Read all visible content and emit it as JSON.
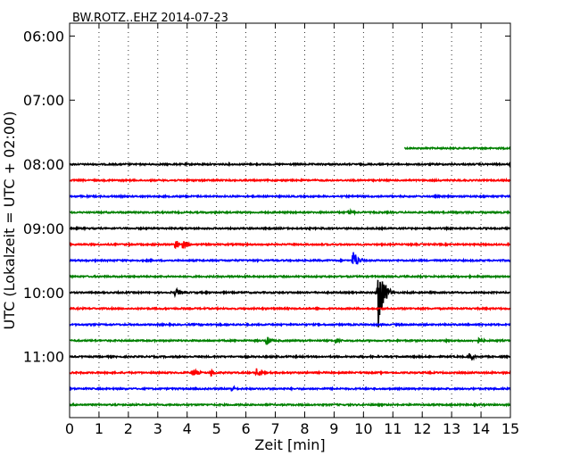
{
  "chart_data": {
    "type": "line",
    "title": "BW.ROTZ..EHZ 2014-07-23",
    "xlabel": "Zeit  [min]",
    "ylabel": "UTC (Lokalzeit = UTC + 02:00)",
    "xlim": [
      0,
      15
    ],
    "x_ticks": [
      "0",
      "1",
      "2",
      "3",
      "4",
      "5",
      "6",
      "7",
      "8",
      "9",
      "10",
      "11",
      "12",
      "13",
      "14",
      "15"
    ],
    "y_ticks": [
      "06:00",
      "07:00",
      "08:00",
      "09:00",
      "10:00",
      "11:00"
    ],
    "y_tick_hours": [
      6,
      7,
      8,
      9,
      10,
      11
    ],
    "ylim_hours": [
      5.8,
      11.95
    ],
    "grid_x": "dotted",
    "row_interval_min": 15,
    "color_cycle": [
      "#000000",
      "#ff0000",
      "#0000ff",
      "#008000"
    ],
    "series": [
      {
        "start": "07:45",
        "x_range": [
          11.4,
          15
        ],
        "color": "#008000",
        "events": []
      },
      {
        "start": "08:00",
        "x_range": [
          0,
          15
        ],
        "color": "#000000",
        "events": [
          {
            "x": 15.0,
            "amp": 0.2
          }
        ]
      },
      {
        "start": "08:15",
        "x_range": [
          0,
          15
        ],
        "color": "#ff0000",
        "events": []
      },
      {
        "start": "08:30",
        "x_range": [
          0,
          15
        ],
        "color": "#0000ff",
        "events": []
      },
      {
        "start": "08:45",
        "x_range": [
          0,
          15
        ],
        "color": "#008000",
        "events": [
          {
            "x": 9.5,
            "amp": 0.2
          }
        ]
      },
      {
        "start": "09:00",
        "x_range": [
          0,
          15
        ],
        "color": "#000000",
        "events": []
      },
      {
        "start": "09:15",
        "x_range": [
          0,
          15
        ],
        "color": "#ff0000",
        "events": [
          {
            "x": 3.6,
            "amp": 0.35
          },
          {
            "x": 3.85,
            "amp": 0.3
          }
        ]
      },
      {
        "start": "09:30",
        "x_range": [
          0,
          15
        ],
        "color": "#0000ff",
        "events": [
          {
            "x": 9.65,
            "amp": 0.7
          }
        ]
      },
      {
        "start": "09:45",
        "x_range": [
          0,
          15
        ],
        "color": "#008000",
        "events": []
      },
      {
        "start": "10:00",
        "x_range": [
          0,
          15
        ],
        "color": "#000000",
        "events": [
          {
            "x": 3.6,
            "amp": 0.3
          },
          {
            "x": 10.5,
            "amp": 2.4
          }
        ]
      },
      {
        "start": "10:15",
        "x_range": [
          0,
          15
        ],
        "color": "#ff0000",
        "events": []
      },
      {
        "start": "10:30",
        "x_range": [
          0,
          15
        ],
        "color": "#0000ff",
        "events": []
      },
      {
        "start": "10:45",
        "x_range": [
          0,
          15
        ],
        "color": "#008000",
        "events": [
          {
            "x": 6.7,
            "amp": 0.3
          },
          {
            "x": 9.05,
            "amp": 0.2
          },
          {
            "x": 13.9,
            "amp": 0.2
          }
        ]
      },
      {
        "start": "11:00",
        "x_range": [
          0,
          15
        ],
        "color": "#000000",
        "events": [
          {
            "x": 13.6,
            "amp": 0.25
          }
        ]
      },
      {
        "start": "11:15",
        "x_range": [
          0,
          15
        ],
        "color": "#ff0000",
        "events": [
          {
            "x": 4.2,
            "amp": 0.3
          },
          {
            "x": 4.8,
            "amp": 0.25
          },
          {
            "x": 6.35,
            "amp": 0.3
          }
        ]
      },
      {
        "start": "11:30",
        "x_range": [
          0,
          15
        ],
        "color": "#0000ff",
        "events": [
          {
            "x": 5.5,
            "amp": 0.2
          }
        ]
      },
      {
        "start": "11:45",
        "x_range": [
          0,
          15
        ],
        "color": "#008000",
        "events": []
      }
    ]
  }
}
